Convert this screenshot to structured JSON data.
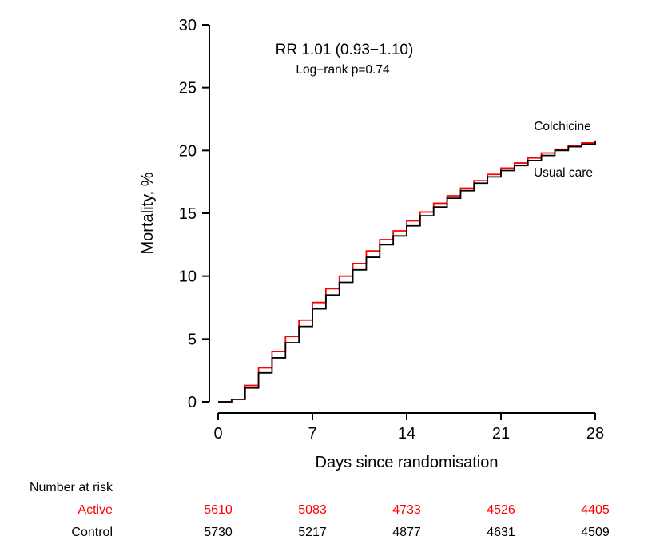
{
  "chart_data": {
    "type": "line",
    "subtype": "step-cumulative-incidence",
    "title": "",
    "xlabel": "Days since randomisation",
    "ylabel": "Mortality, %",
    "xlim": [
      0,
      28
    ],
    "ylim": [
      0,
      30
    ],
    "x_ticks": [
      0,
      7,
      14,
      21,
      28
    ],
    "y_ticks": [
      0,
      5,
      10,
      15,
      20,
      25,
      30
    ],
    "grid": false,
    "x": [
      0,
      1,
      2,
      3,
      4,
      5,
      6,
      7,
      8,
      9,
      10,
      11,
      12,
      13,
      14,
      15,
      16,
      17,
      18,
      19,
      20,
      21,
      22,
      23,
      24,
      25,
      26,
      27,
      28
    ],
    "series": [
      {
        "name": "Colchicine",
        "color": "#FF0000",
        "values": [
          0,
          0.2,
          1.3,
          2.7,
          4.0,
          5.2,
          6.5,
          7.9,
          9.0,
          10.0,
          11.0,
          12.0,
          12.9,
          13.6,
          14.4,
          15.1,
          15.8,
          16.4,
          17.0,
          17.6,
          18.1,
          18.6,
          19.0,
          19.4,
          19.8,
          20.1,
          20.4,
          20.6,
          20.8
        ]
      },
      {
        "name": "Usual care",
        "color": "#000000",
        "values": [
          0,
          0.2,
          1.1,
          2.3,
          3.5,
          4.7,
          6.0,
          7.4,
          8.5,
          9.5,
          10.5,
          11.5,
          12.5,
          13.2,
          14.0,
          14.8,
          15.5,
          16.2,
          16.8,
          17.4,
          17.9,
          18.4,
          18.8,
          19.2,
          19.6,
          20.0,
          20.3,
          20.5,
          20.7
        ]
      }
    ],
    "annotations": {
      "rr": "RR 1.01 (0.93−1.10)",
      "logrank": "Log−rank p=0.74"
    },
    "curve_labels": {
      "colchicine": "Colchicine",
      "usual_care": "Usual care"
    },
    "legend_position": "curve-end-labels"
  },
  "risk_table": {
    "title": "Number at risk",
    "rows": [
      {
        "label": "Active",
        "color": "#FF0000",
        "values": [
          "5610",
          "5083",
          "4733",
          "4526",
          "4405"
        ]
      },
      {
        "label": "Control",
        "color": "#000000",
        "values": [
          "5730",
          "5217",
          "4877",
          "4631",
          "4509"
        ]
      }
    ]
  }
}
